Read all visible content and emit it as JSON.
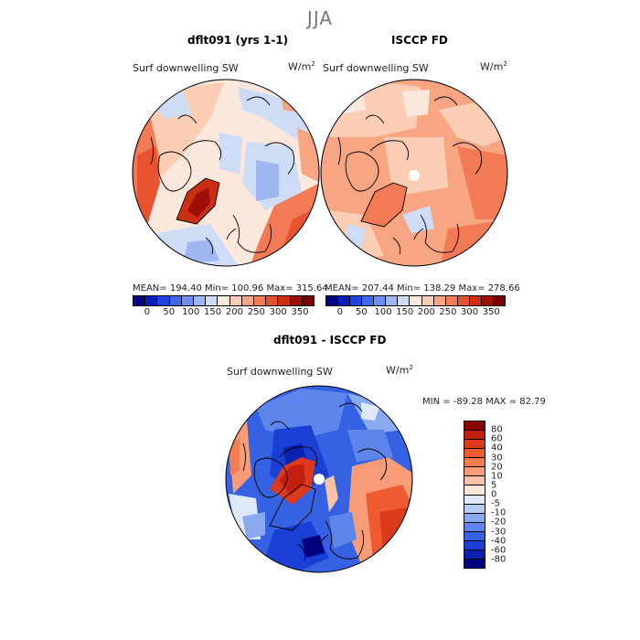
{
  "figure": {
    "title": "JJA"
  },
  "panels": {
    "model": {
      "title": "dflt091 (yrs 1-1)",
      "variable": "Surf downwelling SW",
      "units_base": "W/m",
      "units_exp": "2",
      "stats": "MEAN= 194.40   Min= 100.96   Max= 315.64",
      "colorbar": {
        "colors": [
          "#000080",
          "#0a1fb8",
          "#1f45e0",
          "#3f68ef",
          "#6e8ff2",
          "#9fb6f2",
          "#cfdcf6",
          "#fbe8dc",
          "#fbcdb5",
          "#f7a582",
          "#f27b55",
          "#e8522e",
          "#cc2e14",
          "#9e0f07",
          "#7a0000"
        ],
        "ticks": [
          "0",
          "50",
          "100",
          "150",
          "200",
          "250",
          "300",
          "350"
        ]
      }
    },
    "obs": {
      "title": "ISCCP FD",
      "variable": "Surf downwelling SW",
      "units_base": "W/m",
      "units_exp": "2",
      "stats": "MEAN= 207.44   Min= 138.29   Max= 278.66",
      "colorbar": {
        "colors": [
          "#000080",
          "#0a1fb8",
          "#1f45e0",
          "#3f68ef",
          "#6e8ff2",
          "#9fb6f2",
          "#cfdcf6",
          "#fbe8dc",
          "#fbcdb5",
          "#f7a582",
          "#f27b55",
          "#e8522e",
          "#cc2e14",
          "#9e0f07",
          "#7a0000"
        ],
        "ticks": [
          "0",
          "50",
          "100",
          "150",
          "200",
          "250",
          "300",
          "350"
        ]
      }
    },
    "diff": {
      "title": "dflt091 - ISCCP FD",
      "variable": "Surf downwelling SW",
      "units_base": "W/m",
      "units_exp": "2",
      "stats": "MIN = -89.28  MAX =  82.79",
      "colorbar": {
        "colors": [
          "#8b0000",
          "#c1200e",
          "#dc3a1c",
          "#ef5a30",
          "#f57c50",
          "#f89c78",
          "#fbc1a6",
          "#fde6d8",
          "#dfe8f8",
          "#b7ccf3",
          "#8aaaf0",
          "#5c86ec",
          "#3562e2",
          "#1a3fd4",
          "#0a22b0",
          "#000080"
        ],
        "ticks": [
          "80",
          "60",
          "40",
          "30",
          "20",
          "10",
          "5",
          "0",
          "-5",
          "-10",
          "-20",
          "-30",
          "-40",
          "-60",
          "-80"
        ]
      }
    }
  }
}
